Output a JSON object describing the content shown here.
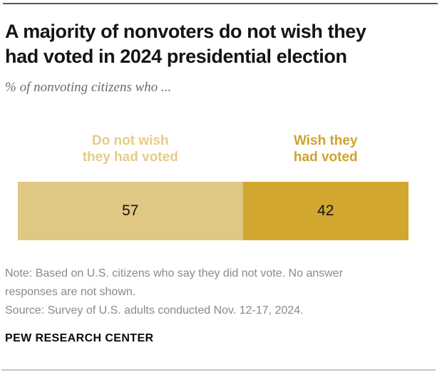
{
  "header": {
    "title_lines": [
      "A majority of nonvoters do not wish they",
      "had voted in 2024 presidential election"
    ],
    "subtitle": "% of nonvoting citizens who ..."
  },
  "chart_data": {
    "type": "bar",
    "variant": "horizontal-stacked",
    "title": "A majority of nonvoters do not wish they had voted in 2024 presidential election",
    "xlabel": "",
    "ylabel": "",
    "unit": "% of nonvoting citizens",
    "categories": [
      "Do not wish they had voted",
      "Wish they had voted"
    ],
    "values": [
      57,
      42
    ],
    "grid": false,
    "legend_position": "above-segments",
    "segments": [
      {
        "label_lines": [
          "Do not wish",
          "they had voted"
        ],
        "value": 57,
        "bar_color": "#e0c783",
        "label_color": "#e6cc86"
      },
      {
        "label_lines": [
          "Wish they",
          "had voted"
        ],
        "value": 42,
        "bar_color": "#d1a730",
        "label_color": "#d0a22d"
      }
    ],
    "value_text_color": "#141414"
  },
  "footer": {
    "note_lines": [
      "Note: Based on U.S. citizens who say they did not vote. No answer",
      "responses are not shown.",
      "Source: Survey of U.S. adults conducted Nov. 12-17, 2024."
    ],
    "brand": "PEW RESEARCH CENTER"
  },
  "colors": {
    "top_rule": "#58585a",
    "bottom_rule": "#c4c4c4",
    "title": "#141414",
    "subtitle": "#6b6b6b",
    "note": "#8a8a8a"
  }
}
